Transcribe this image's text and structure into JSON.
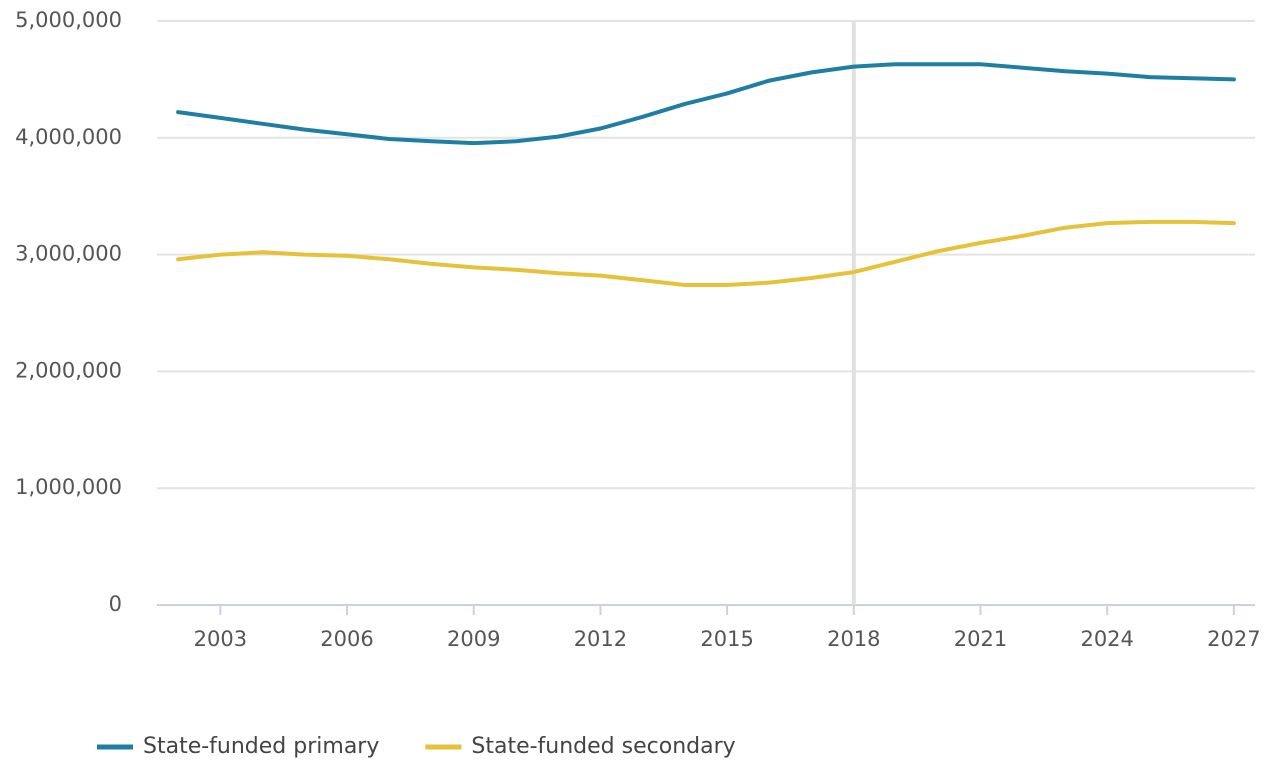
{
  "chart_data": {
    "type": "line",
    "x": [
      2002,
      2003,
      2004,
      2005,
      2006,
      2007,
      2008,
      2009,
      2010,
      2011,
      2012,
      2013,
      2014,
      2015,
      2016,
      2017,
      2018,
      2019,
      2020,
      2021,
      2022,
      2023,
      2024,
      2025,
      2026,
      2027
    ],
    "series": [
      {
        "name": "State-funded primary",
        "color": "#1f7fa3",
        "values": [
          4220000,
          4170000,
          4120000,
          4070000,
          4030000,
          3990000,
          3970000,
          3955000,
          3970000,
          4010000,
          4080000,
          4180000,
          4290000,
          4380000,
          4490000,
          4560000,
          4610000,
          4630000,
          4630000,
          4630000,
          4600000,
          4570000,
          4550000,
          4520000,
          4510000,
          4500000
        ]
      },
      {
        "name": "State-funded secondary",
        "color": "#e6c13a",
        "values": [
          2960000,
          3000000,
          3020000,
          3000000,
          2990000,
          2960000,
          2920000,
          2890000,
          2870000,
          2840000,
          2820000,
          2780000,
          2740000,
          2740000,
          2760000,
          2800000,
          2850000,
          2940000,
          3030000,
          3100000,
          3160000,
          3230000,
          3270000,
          3280000,
          3280000,
          3270000
        ]
      }
    ],
    "xlim": [
      2001.5,
      2027.5
    ],
    "xticks": [
      2003,
      2006,
      2009,
      2012,
      2015,
      2018,
      2021,
      2024,
      2027
    ],
    "ylim": [
      0,
      5000000
    ],
    "yticks": [
      0,
      {
        "value": 1000000,
        "label": "1,000,000"
      },
      {
        "value": 2000000,
        "label": "2,000,000"
      },
      {
        "value": 3000000,
        "label": "3,000,000"
      },
      {
        "value": 4000000,
        "label": "4,000,000"
      },
      {
        "value": 5000000,
        "label": "5,000,000"
      }
    ],
    "highlight_x": 2018,
    "grid": true,
    "legend": "bottom"
  }
}
